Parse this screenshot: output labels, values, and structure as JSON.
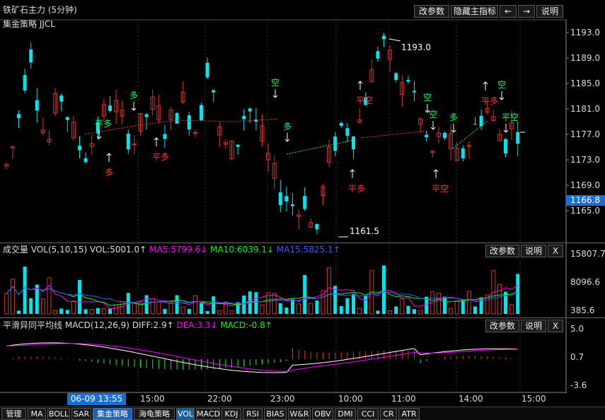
{
  "header": {
    "title": "铁矿石主力 (5分钟)",
    "strategy": "集金策略 JJCL",
    "buttons": {
      "modify": "改参数",
      "hide": "隐藏主指标",
      "prev": "←",
      "next": "→",
      "help": "说明"
    }
  },
  "price_axis": {
    "ticks": [
      "1193.0",
      "1189.0",
      "1185.0",
      "1181.0",
      "1177.0",
      "1173.0",
      "1169.0",
      "1165.0"
    ],
    "current": "1166.8"
  },
  "annotations": {
    "high_label": "1193.0",
    "low_label": "1161.5",
    "signals": [
      "平多",
      "多",
      "多",
      "平多",
      "空",
      "多",
      "平空",
      "平多",
      "空",
      "空",
      "多",
      "平多",
      "空",
      "平空",
      "平空"
    ]
  },
  "volume_panel": {
    "name": "成交量",
    "params": "VOL(5,10,15)",
    "vol": "VOL:5001.0↑",
    "ma5": "MA5:5799.6↓",
    "ma10": "MA10:6039.1↓",
    "ma15": "MA15:5825.1↑",
    "buttons": {
      "modify": "改参数",
      "help": "说明",
      "close": "X"
    },
    "ticks": [
      "15807.7",
      "8096.6",
      "385.6"
    ]
  },
  "macd_panel": {
    "name": "平滑异同平均线",
    "params": "MACD(12,26,9)",
    "diff": "DIFF:2.9↑",
    "dea": "DEA:3.3↓",
    "macd": "MACD:-0.8↑",
    "buttons": {
      "modify": "改参数",
      "help": "说明",
      "close": "X"
    },
    "ticks": [
      "5.0",
      "0.7",
      "-3.6"
    ]
  },
  "time_axis": {
    "cursor": "06-09 13:55",
    "labels": [
      "15:00",
      "22:00",
      "23:00",
      "10:00",
      "11:00",
      "14:00",
      "15:00"
    ]
  },
  "tabs": [
    "管理",
    "MA",
    "BOLL",
    "SAR",
    "集金策略",
    "海龟策略",
    "VOL",
    "MACD",
    "KDJ",
    "RSI",
    "BIAS",
    "W&R",
    "OBV",
    "DMI",
    "CCI",
    "CR",
    "ATR"
  ],
  "colors": {
    "up": "#e23030",
    "down": "#00e5ee",
    "ma5": "#ff00ff",
    "ma10": "#00ff00",
    "ma15": "#3a5bff",
    "signal_red": "#ff3030",
    "signal_green": "#00ff66"
  }
}
